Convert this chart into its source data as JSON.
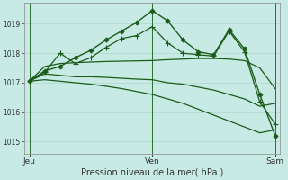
{
  "bg_color": "#c8eae4",
  "grid_color": "#b0d8cc",
  "line_color": "#1a5c1a",
  "xlabel": "Pression niveau de la mer( hPa )",
  "xtick_labels": [
    "Jeu",
    "Ven",
    "Sam"
  ],
  "xtick_pos": [
    0,
    48,
    96
  ],
  "ylim": [
    1014.6,
    1019.7
  ],
  "yticks": [
    1015,
    1016,
    1017,
    1018,
    1019
  ],
  "xlim": [
    -2,
    98
  ],
  "series": [
    {
      "x": [
        0,
        6,
        12,
        18,
        24,
        30,
        36,
        42,
        48,
        54,
        60,
        66,
        72,
        78,
        84,
        90,
        96
      ],
      "y": [
        1017.05,
        1017.4,
        1017.55,
        1017.85,
        1018.1,
        1018.45,
        1018.75,
        1019.05,
        1019.45,
        1019.1,
        1018.45,
        1018.05,
        1017.95,
        1018.8,
        1018.15,
        1016.6,
        1015.2
      ],
      "marker": "D",
      "markersize": 2.5,
      "linewidth": 1.0
    },
    {
      "x": [
        0,
        6,
        12,
        18,
        24,
        30,
        36,
        42,
        48,
        54,
        60,
        66,
        72,
        78,
        84,
        90,
        96
      ],
      "y": [
        1017.05,
        1017.35,
        1018.0,
        1017.65,
        1017.85,
        1018.2,
        1018.5,
        1018.6,
        1018.9,
        1018.35,
        1018.0,
        1017.95,
        1017.9,
        1018.75,
        1018.05,
        1016.35,
        1015.6
      ],
      "marker": "+",
      "markersize": 4,
      "linewidth": 0.9
    },
    {
      "x": [
        0,
        6,
        12,
        18,
        24,
        30,
        36,
        42,
        48,
        54,
        60,
        66,
        72,
        78,
        84,
        90,
        96
      ],
      "y": [
        1017.05,
        1017.55,
        1017.65,
        1017.68,
        1017.7,
        1017.72,
        1017.73,
        1017.74,
        1017.75,
        1017.78,
        1017.8,
        1017.82,
        1017.82,
        1017.8,
        1017.75,
        1017.5,
        1016.8
      ],
      "marker": null,
      "markersize": 0,
      "linewidth": 0.9
    },
    {
      "x": [
        0,
        6,
        12,
        18,
        24,
        30,
        36,
        42,
        48,
        54,
        60,
        66,
        72,
        78,
        84,
        90,
        96
      ],
      "y": [
        1017.05,
        1017.3,
        1017.25,
        1017.2,
        1017.2,
        1017.18,
        1017.15,
        1017.12,
        1017.1,
        1017.0,
        1016.95,
        1016.85,
        1016.75,
        1016.6,
        1016.45,
        1016.2,
        1016.3
      ],
      "marker": null,
      "markersize": 0,
      "linewidth": 0.9
    },
    {
      "x": [
        0,
        6,
        12,
        18,
        24,
        30,
        36,
        42,
        48,
        54,
        60,
        66,
        72,
        78,
        84,
        90,
        96
      ],
      "y": [
        1017.05,
        1017.1,
        1017.05,
        1017.0,
        1016.95,
        1016.88,
        1016.8,
        1016.7,
        1016.6,
        1016.45,
        1016.3,
        1016.1,
        1015.9,
        1015.7,
        1015.5,
        1015.3,
        1015.4
      ],
      "marker": null,
      "markersize": 0,
      "linewidth": 0.9
    }
  ],
  "vline_x": [
    0,
    48,
    96
  ],
  "vline_color": "#2d6e2d",
  "vline_lw": 0.7
}
